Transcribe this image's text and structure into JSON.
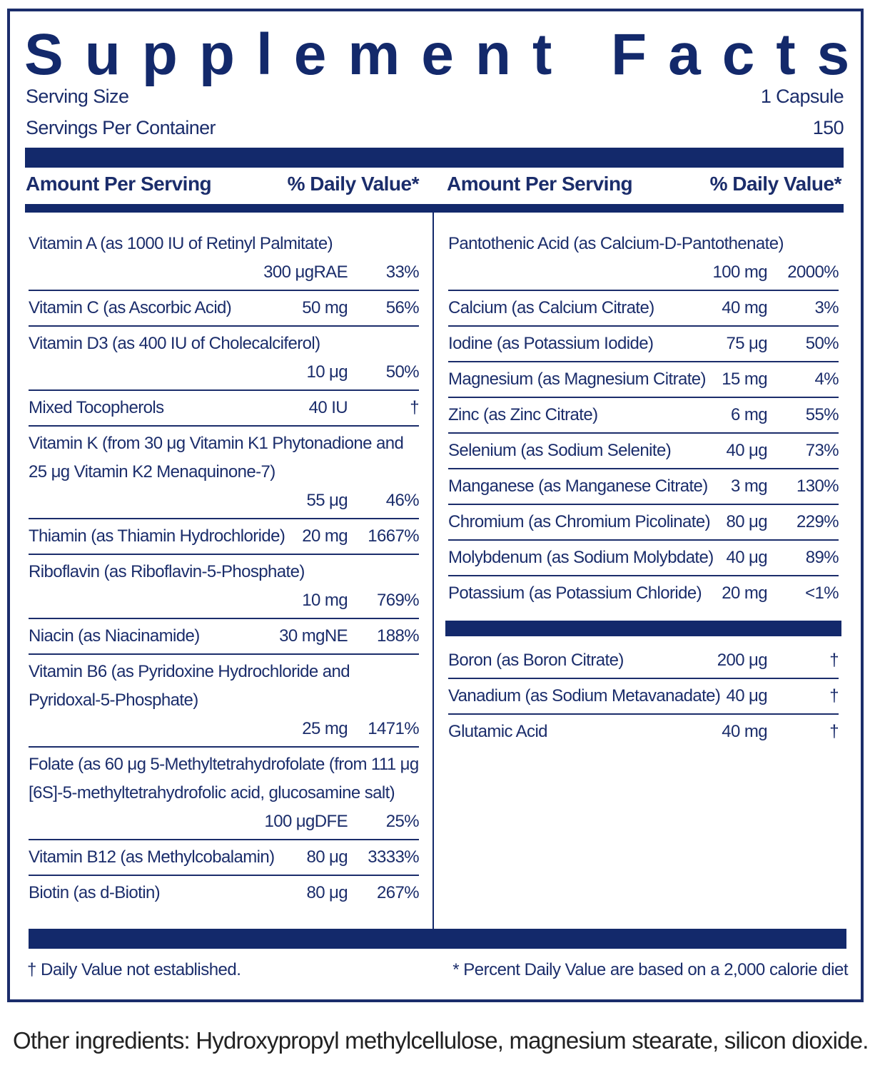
{
  "title": "Supplement Facts",
  "serving": [
    {
      "label": "Serving Size",
      "value": "1 Capsule"
    },
    {
      "label": "Servings Per Container",
      "value": "150"
    }
  ],
  "columns": [
    {
      "headers": [
        "Amount Per Serving",
        "% Daily Value*"
      ],
      "sections": [
        [
          {
            "name": "Vitamin A (as 1000 IU of Retinyl Palmitate)",
            "amount": "300 μgRAE",
            "dv": "33%"
          },
          {
            "name": "Vitamin C (as Ascorbic Acid)",
            "amount": "50 mg",
            "dv": "56%"
          },
          {
            "name": "Vitamin D3 (as 400 IU of Cholecalciferol)",
            "amount": "10 μg",
            "dv": "50%"
          },
          {
            "name": "Mixed Tocopherols",
            "amount": "40 IU",
            "dv": "†"
          },
          {
            "name": "Vitamin K (from 30 μg Vitamin K1 Phytonadione and 25 μg Vitamin K2 Menaquinone-7)",
            "amount": "55 μg",
            "dv": "46%"
          },
          {
            "name": "Thiamin (as Thiamin Hydrochloride)",
            "amount": "20 mg",
            "dv": "1667%"
          },
          {
            "name": "Riboflavin (as Riboflavin-5-Phosphate)",
            "amount": "10 mg",
            "dv": "769%"
          },
          {
            "name": "Niacin (as Niacinamide)",
            "amount": "30 mgNE",
            "dv": "188%"
          },
          {
            "name": "Vitamin B6 (as Pyridoxine Hydrochloride and Pyridoxal-5-Phosphate)",
            "amount": "25 mg",
            "dv": "1471%"
          },
          {
            "name": "Folate (as 60 μg 5-Methyltetrahydrofolate (from 111 μg [6S]-5-methyltetrahydrofolic acid, glucosamine salt)",
            "amount": "100 μgDFE",
            "dv": "25%"
          },
          {
            "name": "Vitamin B12 (as Methylcobalamin)",
            "amount": "80 μg",
            "dv": "3333%"
          },
          {
            "name": "Biotin (as d-Biotin)",
            "amount": "80 μg",
            "dv": "267%"
          }
        ]
      ]
    },
    {
      "headers": [
        "Amount Per Serving",
        "% Daily Value*"
      ],
      "sections": [
        [
          {
            "name": "Pantothenic Acid (as Calcium-D-Pantothenate)",
            "amount": "100 mg",
            "dv": "2000%"
          },
          {
            "name": "Calcium (as Calcium Citrate)",
            "amount": "40 mg",
            "dv": "3%"
          },
          {
            "name": "Iodine (as Potassium Iodide)",
            "amount": "75 μg",
            "dv": "50%"
          },
          {
            "name": "Magnesium (as Magnesium Citrate)",
            "amount": "15 mg",
            "dv": "4%"
          },
          {
            "name": "Zinc (as Zinc Citrate)",
            "amount": "6 mg",
            "dv": "55%"
          },
          {
            "name": "Selenium (as Sodium Selenite)",
            "amount": "40 μg",
            "dv": "73%"
          },
          {
            "name": "Manganese (as Manganese Citrate)",
            "amount": "3 mg",
            "dv": "130%"
          },
          {
            "name": "Chromium (as Chromium Picolinate)",
            "amount": "80 μg",
            "dv": "229%"
          },
          {
            "name": "Molybdenum (as Sodium Molybdate)",
            "amount": "40 μg",
            "dv": "89%"
          },
          {
            "name": "Potassium (as Potassium Chloride)",
            "amount": "20 mg",
            "dv": "<1%"
          }
        ],
        [
          {
            "name": "Boron (as Boron Citrate)",
            "amount": "200 μg",
            "dv": "†"
          },
          {
            "name": "Vanadium (as Sodium Metavanadate)",
            "amount": "40 μg",
            "dv": "†"
          },
          {
            "name": "Glutamic Acid",
            "amount": "40 mg",
            "dv": "†"
          }
        ]
      ]
    }
  ],
  "footnotes": [
    "† Daily Value not established.",
    "* Percent Daily Value are based on a 2,000 calorie diet"
  ],
  "other_ingredients": "Other ingredients: Hydroxypropyl methylcellulose, magnesium stearate, silicon dioxide."
}
